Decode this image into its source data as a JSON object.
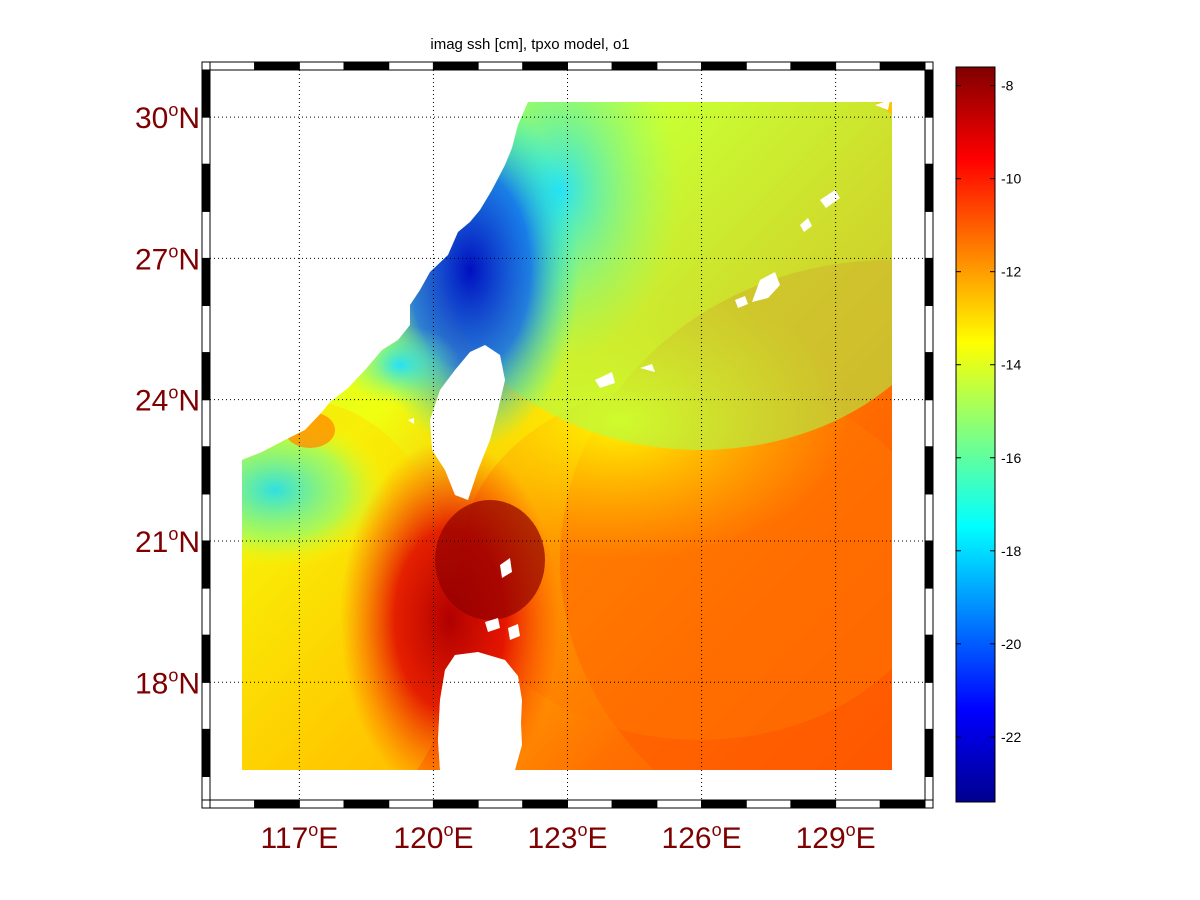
{
  "title": "imag ssh [cm], tpxo model, o1",
  "map": {
    "lat_ticks": [
      {
        "deg": "30",
        "hemi": "N",
        "value": 30
      },
      {
        "deg": "27",
        "hemi": "N",
        "value": 27
      },
      {
        "deg": "24",
        "hemi": "N",
        "value": 24
      },
      {
        "deg": "21",
        "hemi": "N",
        "value": 21
      },
      {
        "deg": "18",
        "hemi": "N",
        "value": 18
      }
    ],
    "lon_ticks": [
      {
        "deg": "117",
        "hemi": "E",
        "value": 117
      },
      {
        "deg": "120",
        "hemi": "E",
        "value": 120
      },
      {
        "deg": "123",
        "hemi": "E",
        "value": 123
      },
      {
        "deg": "126",
        "hemi": "E",
        "value": 126
      },
      {
        "deg": "129",
        "hemi": "E",
        "value": 129
      }
    ],
    "lon_range": [
      115,
      131
    ],
    "lat_range": [
      15.5,
      31
    ],
    "grid": true,
    "land_color": "#ffffff",
    "tick_label_color": "#7f0000"
  },
  "colorbar": {
    "range": [
      -23.4,
      -7.6
    ],
    "ticks": [
      "-8",
      "-10",
      "-12",
      "-14",
      "-16",
      "-18",
      "-20",
      "-22"
    ],
    "tick_values": [
      -8,
      -10,
      -12,
      -14,
      -16,
      -18,
      -20,
      -22
    ],
    "colormap": "jet"
  },
  "chart_data": {
    "type": "heatmap",
    "title": "imag ssh [cm], tpxo model, o1",
    "xlabel": "",
    "ylabel": "",
    "field": "imaginary part of sea surface height (cm), O1 tidal constituent",
    "xlim_deg_E": [
      115,
      131
    ],
    "ylim_deg_N": [
      15.5,
      31
    ],
    "color_range": [
      -23.4,
      -7.6
    ],
    "approx_values": [
      {
        "region": "East China Sea coast ~27N 120.5E",
        "value": -22
      },
      {
        "region": "off Zhejiang ~29N 123E",
        "value": -17
      },
      {
        "region": "Taiwan Strait north ~25.5N 120E",
        "value": -18
      },
      {
        "region": "South China Sea west ~22N 116E",
        "value": -17
      },
      {
        "region": "Luzon Strait ~20.5N 121.5E",
        "value": -8
      },
      {
        "region": "east of Luzon ~18N 126E",
        "value": -11
      },
      {
        "region": "Philippine Sea ~18N 130E",
        "value": -10.5
      },
      {
        "region": "north-east ~29N 129E",
        "value": -14.5
      }
    ]
  }
}
